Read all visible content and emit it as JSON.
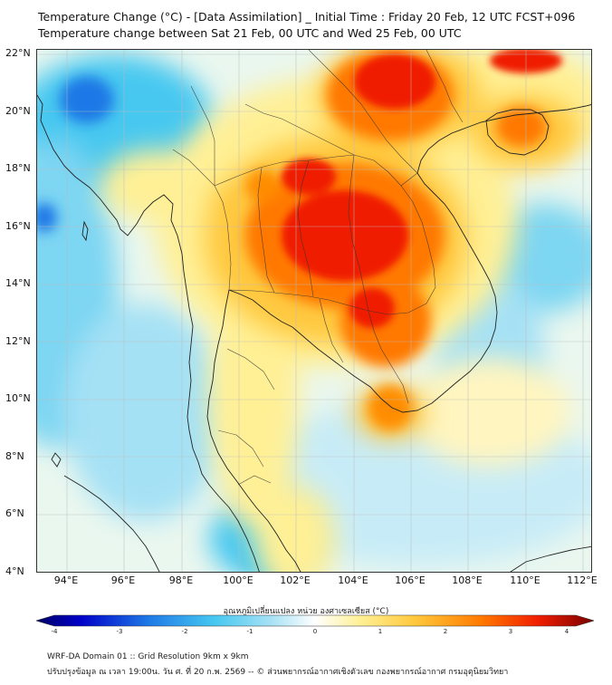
{
  "title_line1": "Temperature Change (°C) - [Data Assimilation] _ Initial Time : Friday 20 Feb, 12 UTC FCST+096",
  "title_line2": "Temperature change between Sat 21 Feb, 00 UTC and Wed 25 Feb, 00 UTC",
  "lat_ticks": [
    "22°N",
    "20°N",
    "18°N",
    "16°N",
    "14°N",
    "12°N",
    "10°N",
    "8°N",
    "6°N",
    "4°N"
  ],
  "lon_ticks": [
    "94°E",
    "96°E",
    "98°E",
    "100°E",
    "102°E",
    "104°E",
    "106°E",
    "108°E",
    "110°E",
    "112°E"
  ],
  "colorbar": {
    "label": "อุณหภูมิเปลี่ยนแปลง หน่วย องศาเซลเซียส (°C)",
    "ticks": [
      "-4",
      "-3",
      "-2",
      "-1",
      "0",
      "1",
      "2",
      "3",
      "4"
    ],
    "min": -4,
    "max": 4
  },
  "footer_line1": "WRF-DA Domain 01 :: Grid Resolution 9km x 9km",
  "footer_line2": "ปรับปรุงข้อมูล ณ เวลา 19:00น. วัน ศ. ที่ 20 ก.พ. 2569 -- © ส่วนพยากรณ์อากาศเชิงตัวเลข กองพยากรณ์อากาศ กรมอุตุนิยมวิทยา",
  "colors": {
    "cold_strong": "#1e78e6",
    "cold": "#46c8f0",
    "cold_light": "#a5e1f5",
    "neutral": "#ffffff",
    "warm_light": "#fff096",
    "warm": "#ffc83c",
    "hot": "#ff7800",
    "hot_strong": "#f01e00",
    "coast": "#222222"
  }
}
